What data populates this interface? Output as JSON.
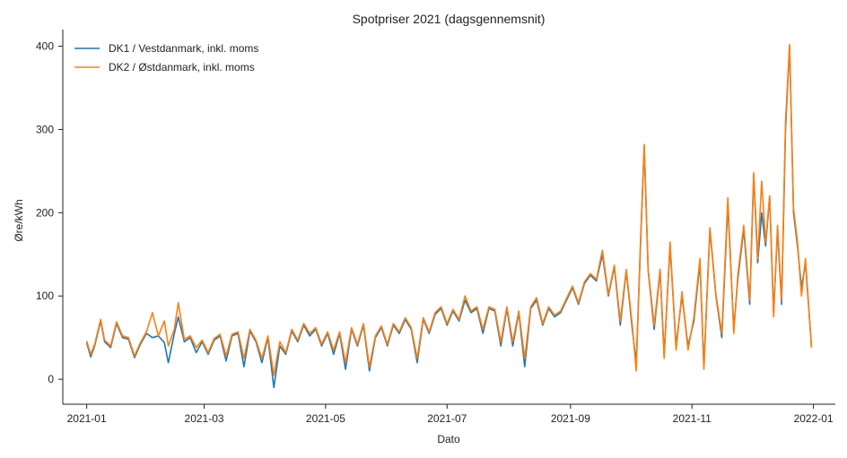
{
  "chart_data": {
    "type": "line",
    "title": "Spotpriser 2021 (dagsgennemsnit)",
    "xlabel": "Dato",
    "ylabel": "Øre/kWh",
    "xlim": [
      "2020-12-20",
      "2022-01-12"
    ],
    "ylim": [
      -30,
      420
    ],
    "x_ticks": [
      "2021-01",
      "2021-03",
      "2021-05",
      "2021-07",
      "2021-09",
      "2021-11",
      "2022-01"
    ],
    "y_ticks": [
      0,
      100,
      200,
      300,
      400
    ],
    "grid": false,
    "legend_position": "upper-left",
    "series": [
      {
        "name": "DK1 / Vestdanmark, inkl. moms",
        "color": "#1f77b4",
        "points": [
          [
            "2021-01-01",
            44
          ],
          [
            "2021-01-03",
            27
          ],
          [
            "2021-01-05",
            40
          ],
          [
            "2021-01-08",
            70
          ],
          [
            "2021-01-10",
            45
          ],
          [
            "2021-01-13",
            38
          ],
          [
            "2021-01-16",
            67
          ],
          [
            "2021-01-19",
            50
          ],
          [
            "2021-01-22",
            48
          ],
          [
            "2021-01-25",
            26
          ],
          [
            "2021-01-28",
            42
          ],
          [
            "2021-01-31",
            55
          ],
          [
            "2021-02-03",
            50
          ],
          [
            "2021-02-06",
            52
          ],
          [
            "2021-02-09",
            44
          ],
          [
            "2021-02-11",
            20
          ],
          [
            "2021-02-14",
            55
          ],
          [
            "2021-02-16",
            75
          ],
          [
            "2021-02-19",
            45
          ],
          [
            "2021-02-22",
            50
          ],
          [
            "2021-02-25",
            32
          ],
          [
            "2021-02-28",
            45
          ],
          [
            "2021-03-03",
            30
          ],
          [
            "2021-03-06",
            47
          ],
          [
            "2021-03-09",
            52
          ],
          [
            "2021-03-12",
            22
          ],
          [
            "2021-03-15",
            52
          ],
          [
            "2021-03-18",
            55
          ],
          [
            "2021-03-21",
            15
          ],
          [
            "2021-03-24",
            58
          ],
          [
            "2021-03-27",
            45
          ],
          [
            "2021-03-30",
            20
          ],
          [
            "2021-04-02",
            50
          ],
          [
            "2021-04-05",
            -10
          ],
          [
            "2021-04-08",
            40
          ],
          [
            "2021-04-11",
            30
          ],
          [
            "2021-04-14",
            58
          ],
          [
            "2021-04-17",
            45
          ],
          [
            "2021-04-20",
            65
          ],
          [
            "2021-04-23",
            52
          ],
          [
            "2021-04-26",
            60
          ],
          [
            "2021-04-29",
            40
          ],
          [
            "2021-05-02",
            55
          ],
          [
            "2021-05-05",
            30
          ],
          [
            "2021-05-08",
            55
          ],
          [
            "2021-05-11",
            12
          ],
          [
            "2021-05-14",
            60
          ],
          [
            "2021-05-17",
            40
          ],
          [
            "2021-05-20",
            65
          ],
          [
            "2021-05-23",
            10
          ],
          [
            "2021-05-26",
            50
          ],
          [
            "2021-05-29",
            62
          ],
          [
            "2021-06-01",
            40
          ],
          [
            "2021-06-04",
            65
          ],
          [
            "2021-06-07",
            55
          ],
          [
            "2021-06-10",
            72
          ],
          [
            "2021-06-13",
            60
          ],
          [
            "2021-06-16",
            20
          ],
          [
            "2021-06-19",
            72
          ],
          [
            "2021-06-22",
            55
          ],
          [
            "2021-06-25",
            78
          ],
          [
            "2021-06-28",
            85
          ],
          [
            "2021-07-01",
            65
          ],
          [
            "2021-07-04",
            82
          ],
          [
            "2021-07-07",
            70
          ],
          [
            "2021-07-10",
            95
          ],
          [
            "2021-07-13",
            80
          ],
          [
            "2021-07-16",
            85
          ],
          [
            "2021-07-19",
            55
          ],
          [
            "2021-07-22",
            85
          ],
          [
            "2021-07-25",
            82
          ],
          [
            "2021-07-28",
            40
          ],
          [
            "2021-07-31",
            85
          ],
          [
            "2021-08-03",
            40
          ],
          [
            "2021-08-06",
            80
          ],
          [
            "2021-08-09",
            15
          ],
          [
            "2021-08-12",
            85
          ],
          [
            "2021-08-15",
            95
          ],
          [
            "2021-08-18",
            65
          ],
          [
            "2021-08-21",
            85
          ],
          [
            "2021-08-24",
            75
          ],
          [
            "2021-08-27",
            80
          ],
          [
            "2021-08-30",
            95
          ],
          [
            "2021-09-02",
            110
          ],
          [
            "2021-09-05",
            90
          ],
          [
            "2021-09-08",
            115
          ],
          [
            "2021-09-11",
            125
          ],
          [
            "2021-09-14",
            118
          ],
          [
            "2021-09-17",
            150
          ],
          [
            "2021-09-20",
            100
          ],
          [
            "2021-09-23",
            135
          ],
          [
            "2021-09-26",
            65
          ],
          [
            "2021-09-29",
            130
          ],
          [
            "2021-10-02",
            60
          ],
          [
            "2021-10-04",
            20
          ],
          [
            "2021-10-06",
            150
          ],
          [
            "2021-10-08",
            280
          ],
          [
            "2021-10-10",
            130
          ],
          [
            "2021-10-13",
            60
          ],
          [
            "2021-10-16",
            130
          ],
          [
            "2021-10-18",
            30
          ],
          [
            "2021-10-21",
            160
          ],
          [
            "2021-10-24",
            40
          ],
          [
            "2021-10-27",
            100
          ],
          [
            "2021-10-30",
            40
          ],
          [
            "2021-11-02",
            70
          ],
          [
            "2021-11-05",
            140
          ],
          [
            "2021-11-07",
            15
          ],
          [
            "2021-11-10",
            180
          ],
          [
            "2021-11-13",
            100
          ],
          [
            "2021-11-16",
            50
          ],
          [
            "2021-11-19",
            210
          ],
          [
            "2021-11-22",
            60
          ],
          [
            "2021-11-24",
            120
          ],
          [
            "2021-11-27",
            180
          ],
          [
            "2021-11-30",
            90
          ],
          [
            "2021-12-02",
            245
          ],
          [
            "2021-12-04",
            140
          ],
          [
            "2021-12-06",
            200
          ],
          [
            "2021-12-08",
            160
          ],
          [
            "2021-12-10",
            220
          ],
          [
            "2021-12-12",
            80
          ],
          [
            "2021-12-14",
            180
          ],
          [
            "2021-12-16",
            90
          ],
          [
            "2021-12-18",
            300
          ],
          [
            "2021-12-20",
            400
          ],
          [
            "2021-12-22",
            200
          ],
          [
            "2021-12-24",
            160
          ],
          [
            "2021-12-26",
            110
          ],
          [
            "2021-12-28",
            140
          ],
          [
            "2021-12-31",
            40
          ]
        ]
      },
      {
        "name": "DK2 / Østdanmark, inkl. moms",
        "color": "#ff7f0e",
        "points": [
          [
            "2021-01-01",
            46
          ],
          [
            "2021-01-03",
            30
          ],
          [
            "2021-01-05",
            42
          ],
          [
            "2021-01-08",
            72
          ],
          [
            "2021-01-10",
            47
          ],
          [
            "2021-01-13",
            40
          ],
          [
            "2021-01-16",
            69
          ],
          [
            "2021-01-19",
            52
          ],
          [
            "2021-01-22",
            50
          ],
          [
            "2021-01-25",
            28
          ],
          [
            "2021-01-28",
            44
          ],
          [
            "2021-01-31",
            57
          ],
          [
            "2021-02-03",
            80
          ],
          [
            "2021-02-06",
            52
          ],
          [
            "2021-02-09",
            70
          ],
          [
            "2021-02-11",
            40
          ],
          [
            "2021-02-14",
            60
          ],
          [
            "2021-02-16",
            92
          ],
          [
            "2021-02-19",
            48
          ],
          [
            "2021-02-22",
            52
          ],
          [
            "2021-02-25",
            38
          ],
          [
            "2021-02-28",
            47
          ],
          [
            "2021-03-03",
            32
          ],
          [
            "2021-03-06",
            49
          ],
          [
            "2021-03-09",
            54
          ],
          [
            "2021-03-12",
            28
          ],
          [
            "2021-03-15",
            54
          ],
          [
            "2021-03-18",
            57
          ],
          [
            "2021-03-21",
            25
          ],
          [
            "2021-03-24",
            60
          ],
          [
            "2021-03-27",
            47
          ],
          [
            "2021-03-30",
            25
          ],
          [
            "2021-04-02",
            52
          ],
          [
            "2021-04-05",
            5
          ],
          [
            "2021-04-08",
            45
          ],
          [
            "2021-04-11",
            32
          ],
          [
            "2021-04-14",
            60
          ],
          [
            "2021-04-17",
            47
          ],
          [
            "2021-04-20",
            67
          ],
          [
            "2021-04-23",
            55
          ],
          [
            "2021-04-26",
            62
          ],
          [
            "2021-04-29",
            42
          ],
          [
            "2021-05-02",
            57
          ],
          [
            "2021-05-05",
            35
          ],
          [
            "2021-05-08",
            57
          ],
          [
            "2021-05-11",
            20
          ],
          [
            "2021-05-14",
            62
          ],
          [
            "2021-05-17",
            42
          ],
          [
            "2021-05-20",
            67
          ],
          [
            "2021-05-23",
            15
          ],
          [
            "2021-05-26",
            52
          ],
          [
            "2021-05-29",
            64
          ],
          [
            "2021-06-01",
            42
          ],
          [
            "2021-06-04",
            67
          ],
          [
            "2021-06-07",
            57
          ],
          [
            "2021-06-10",
            74
          ],
          [
            "2021-06-13",
            62
          ],
          [
            "2021-06-16",
            25
          ],
          [
            "2021-06-19",
            74
          ],
          [
            "2021-06-22",
            57
          ],
          [
            "2021-06-25",
            80
          ],
          [
            "2021-06-28",
            87
          ],
          [
            "2021-07-01",
            67
          ],
          [
            "2021-07-04",
            84
          ],
          [
            "2021-07-07",
            72
          ],
          [
            "2021-07-10",
            100
          ],
          [
            "2021-07-13",
            82
          ],
          [
            "2021-07-16",
            87
          ],
          [
            "2021-07-19",
            60
          ],
          [
            "2021-07-22",
            87
          ],
          [
            "2021-07-25",
            84
          ],
          [
            "2021-07-28",
            45
          ],
          [
            "2021-07-31",
            87
          ],
          [
            "2021-08-03",
            45
          ],
          [
            "2021-08-06",
            82
          ],
          [
            "2021-08-09",
            25
          ],
          [
            "2021-08-12",
            87
          ],
          [
            "2021-08-15",
            98
          ],
          [
            "2021-08-18",
            67
          ],
          [
            "2021-08-21",
            87
          ],
          [
            "2021-08-24",
            77
          ],
          [
            "2021-08-27",
            82
          ],
          [
            "2021-08-30",
            97
          ],
          [
            "2021-09-02",
            112
          ],
          [
            "2021-09-05",
            92
          ],
          [
            "2021-09-08",
            117
          ],
          [
            "2021-09-11",
            127
          ],
          [
            "2021-09-14",
            120
          ],
          [
            "2021-09-17",
            155
          ],
          [
            "2021-09-20",
            102
          ],
          [
            "2021-09-23",
            137
          ],
          [
            "2021-09-26",
            70
          ],
          [
            "2021-09-29",
            132
          ],
          [
            "2021-10-02",
            65
          ],
          [
            "2021-10-04",
            10
          ],
          [
            "2021-10-06",
            155
          ],
          [
            "2021-10-08",
            282
          ],
          [
            "2021-10-10",
            132
          ],
          [
            "2021-10-13",
            65
          ],
          [
            "2021-10-16",
            132
          ],
          [
            "2021-10-18",
            25
          ],
          [
            "2021-10-21",
            165
          ],
          [
            "2021-10-24",
            35
          ],
          [
            "2021-10-27",
            105
          ],
          [
            "2021-10-30",
            35
          ],
          [
            "2021-11-02",
            75
          ],
          [
            "2021-11-05",
            145
          ],
          [
            "2021-11-07",
            12
          ],
          [
            "2021-11-10",
            182
          ],
          [
            "2021-11-13",
            102
          ],
          [
            "2021-11-16",
            55
          ],
          [
            "2021-11-19",
            218
          ],
          [
            "2021-11-22",
            55
          ],
          [
            "2021-11-24",
            125
          ],
          [
            "2021-11-27",
            185
          ],
          [
            "2021-11-30",
            95
          ],
          [
            "2021-12-02",
            248
          ],
          [
            "2021-12-04",
            145
          ],
          [
            "2021-12-06",
            238
          ],
          [
            "2021-12-08",
            165
          ],
          [
            "2021-12-10",
            220
          ],
          [
            "2021-12-12",
            75
          ],
          [
            "2021-12-14",
            185
          ],
          [
            "2021-12-16",
            95
          ],
          [
            "2021-12-18",
            310
          ],
          [
            "2021-12-20",
            402
          ],
          [
            "2021-12-22",
            205
          ],
          [
            "2021-12-24",
            165
          ],
          [
            "2021-12-26",
            100
          ],
          [
            "2021-12-28",
            145
          ],
          [
            "2021-12-31",
            38
          ]
        ]
      }
    ]
  }
}
